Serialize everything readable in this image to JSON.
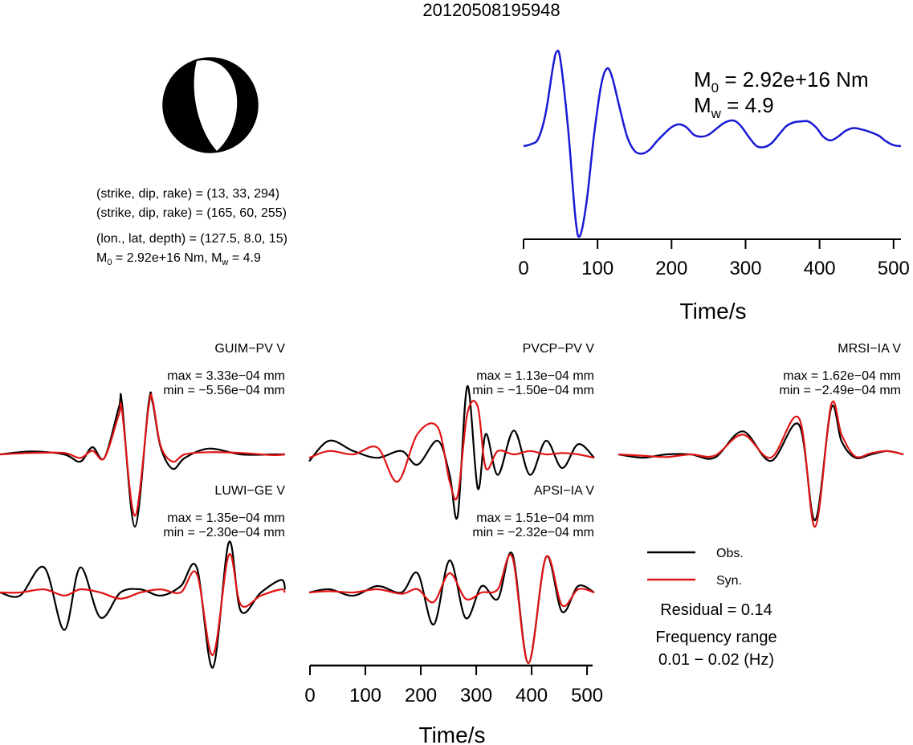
{
  "title": "20120508195948",
  "mechanism": {
    "lines": [
      "(strike, dip, rake) = (13, 33, 294)",
      "(strike, dip, rake) = (165, 60, 255)",
      "(lon., lat, depth) = (127.5, 8.0, 15)"
    ],
    "moment_prefix": "M",
    "moment_sub": "0",
    "moment_mid": " = 2.92e+16 Nm, M",
    "moment_sub2": "w",
    "moment_suffix": " = 4.9"
  },
  "stf": {
    "m0_label": "M",
    "m0_sub": "0",
    "m0_value": " = 2.92e+16 Nm",
    "mw_label": "M",
    "mw_sub": "w",
    "mw_value": " = 4.9",
    "color": "#1a1ad6"
  },
  "axis_label": "Time/s",
  "legend": {
    "obs": "Obs.",
    "syn": "Syn."
  },
  "residual": "Residual = 0.14",
  "freq_label": "Frequency range",
  "freq_value": "0.01 − 0.02 (Hz)",
  "colors": {
    "obs": "#000000",
    "syn": "#e01414"
  },
  "chart_data": [
    {
      "type": "line",
      "title": "",
      "xlabel": "Time/s",
      "ylabel": "",
      "xlim": [
        0,
        510
      ],
      "xticks": [
        0,
        100,
        200,
        300,
        400,
        500
      ],
      "series": [
        {
          "name": "",
          "x": [
            0,
            10,
            20,
            30,
            40,
            45,
            50,
            60,
            70,
            76,
            85,
            95,
            105,
            113,
            120,
            130,
            140,
            150,
            160,
            170,
            180,
            190,
            200,
            210,
            220,
            230,
            240,
            250,
            260,
            270,
            280,
            287,
            295,
            305,
            315,
            325,
            335,
            345,
            355,
            365,
            375,
            385,
            395,
            405,
            415,
            425,
            435,
            445,
            455,
            468,
            480,
            490,
            500,
            510
          ],
          "y": [
            0.0,
            0.02,
            0.08,
            0.35,
            0.85,
            1.0,
            0.9,
            0.2,
            -0.75,
            -0.95,
            -0.6,
            0.1,
            0.65,
            0.82,
            0.72,
            0.4,
            0.1,
            -0.05,
            -0.08,
            -0.04,
            0.05,
            0.13,
            0.2,
            0.23,
            0.2,
            0.12,
            0.1,
            0.12,
            0.18,
            0.24,
            0.27,
            0.26,
            0.2,
            0.09,
            0.0,
            -0.01,
            0.03,
            0.12,
            0.21,
            0.25,
            0.26,
            0.26,
            0.2,
            0.1,
            0.06,
            0.1,
            0.16,
            0.19,
            0.18,
            0.15,
            0.11,
            0.05,
            0.01,
            0.0
          ]
        }
      ]
    },
    {
      "type": "line",
      "station": "GUIM−PV V",
      "max": "max = 3.33e−04 mm",
      "min": "min = −5.56e−04 mm",
      "series": [
        {
          "name": "Obs.",
          "x": [
            0,
            40,
            80,
            100,
            115,
            130,
            148,
            152,
            168,
            185,
            190,
            200,
            215,
            230,
            260,
            300,
            340,
            355
          ],
          "y": [
            0.0,
            0.04,
            0.0,
            -0.1,
            0.1,
            -0.05,
            0.65,
            0.7,
            -1.0,
            0.7,
            0.72,
            0.1,
            -0.2,
            -0.05,
            0.08,
            0.0,
            0.0,
            0.0
          ]
        },
        {
          "name": "Syn.",
          "x": [
            0,
            40,
            80,
            100,
            115,
            130,
            148,
            152,
            168,
            185,
            190,
            200,
            215,
            230,
            260,
            300,
            340,
            355
          ],
          "y": [
            0.0,
            0.02,
            0.02,
            -0.05,
            0.05,
            -0.05,
            0.55,
            0.6,
            -0.85,
            0.65,
            0.75,
            0.12,
            -0.1,
            0.0,
            0.03,
            0.02,
            -0.01,
            0.0
          ]
        }
      ]
    },
    {
      "type": "line",
      "station": "PVCP−PV V",
      "max": "max = 1.13e−04 mm",
      "min": "min = −1.50e−04 mm",
      "series": [
        {
          "name": "Obs.",
          "x": [
            385,
            410,
            440,
            470,
            500,
            520,
            545,
            560,
            570,
            582,
            595,
            605,
            620,
            640,
            660,
            680,
            700,
            720,
            740
          ],
          "y": [
            -0.1,
            0.2,
            0.05,
            -0.05,
            0.05,
            -0.15,
            0.2,
            -0.3,
            -0.9,
            1.0,
            -0.5,
            0.3,
            -0.3,
            0.35,
            -0.3,
            0.2,
            -0.2,
            0.15,
            -0.05
          ]
        },
        {
          "name": "Syn.",
          "x": [
            385,
            410,
            440,
            470,
            495,
            520,
            545,
            560,
            570,
            582,
            595,
            605,
            620,
            640,
            660,
            680,
            700,
            720,
            740
          ],
          "y": [
            -0.05,
            0.05,
            0.0,
            0.1,
            -0.4,
            0.3,
            0.4,
            -0.4,
            -0.6,
            0.6,
            0.7,
            -0.2,
            0.05,
            0.0,
            0.05,
            0.0,
            0.02,
            0.0,
            -0.05
          ]
        }
      ]
    },
    {
      "type": "line",
      "station": "MRSI−IA V",
      "max": "max = 1.62e−04 mm",
      "min": "min = −2.49e−04 mm",
      "series": [
        {
          "name": "Obs.",
          "x": [
            770,
            800,
            830,
            860,
            890,
            925,
            960,
            995,
            1015,
            1035,
            1048,
            1065,
            1085,
            1105,
            1125
          ],
          "y": [
            0.0,
            -0.05,
            0.0,
            0.0,
            -0.05,
            0.35,
            -0.1,
            0.45,
            -1.0,
            0.7,
            0.2,
            -0.05,
            0.0,
            0.05,
            0.0
          ]
        },
        {
          "name": "Syn.",
          "x": [
            770,
            800,
            830,
            860,
            890,
            925,
            960,
            995,
            1015,
            1035,
            1048,
            1065,
            1085,
            1105,
            1125
          ],
          "y": [
            0.0,
            -0.02,
            -0.04,
            0.0,
            -0.02,
            0.3,
            -0.05,
            0.55,
            -1.1,
            0.75,
            0.3,
            -0.03,
            0.02,
            0.05,
            0.0
          ]
        }
      ]
    },
    {
      "type": "line",
      "station": "LUWI−GE V",
      "max": "max = 1.35e−04 mm",
      "min": "min = −2.30e−04 mm",
      "series": [
        {
          "name": "Obs.",
          "x": [
            0,
            25,
            55,
            80,
            100,
            125,
            150,
            175,
            200,
            225,
            245,
            265,
            285,
            300,
            325,
            350,
            355
          ],
          "y": [
            0.0,
            -0.05,
            0.4,
            -0.6,
            0.4,
            -0.4,
            0.0,
            0.05,
            -0.05,
            0.1,
            0.4,
            -1.2,
            0.8,
            -0.3,
            0.0,
            0.2,
            0.05
          ]
        },
        {
          "name": "Syn.",
          "x": [
            0,
            25,
            55,
            80,
            100,
            125,
            150,
            175,
            200,
            225,
            245,
            265,
            285,
            300,
            325,
            350,
            355
          ],
          "y": [
            0.0,
            0.0,
            0.05,
            -0.05,
            0.05,
            0.0,
            -0.1,
            0.0,
            0.05,
            0.0,
            0.3,
            -1.0,
            0.6,
            -0.2,
            -0.05,
            0.05,
            0.0
          ]
        }
      ]
    },
    {
      "type": "line",
      "station": "APSI−IA V",
      "max": "max = 1.51e−04 mm",
      "min": "min = −2.32e−04 mm",
      "series": [
        {
          "name": "Obs.",
          "x": [
            385,
            410,
            440,
            470,
            500,
            520,
            540,
            560,
            580,
            600,
            620,
            638,
            658,
            680,
            700,
            720,
            740
          ],
          "y": [
            0.0,
            0.05,
            -0.05,
            0.1,
            0.0,
            0.3,
            -0.5,
            0.5,
            -0.4,
            0.1,
            -0.1,
            0.6,
            -1.1,
            0.55,
            -0.3,
            0.1,
            0.0
          ]
        },
        {
          "name": "Syn.",
          "x": [
            385,
            410,
            440,
            470,
            500,
            520,
            540,
            560,
            580,
            600,
            620,
            638,
            658,
            680,
            700,
            720,
            740
          ],
          "y": [
            0.0,
            0.02,
            0.0,
            0.05,
            -0.02,
            0.05,
            -0.15,
            0.3,
            -0.1,
            0.0,
            0.05,
            0.55,
            -1.1,
            0.55,
            -0.2,
            0.05,
            0.0
          ]
        }
      ]
    }
  ]
}
